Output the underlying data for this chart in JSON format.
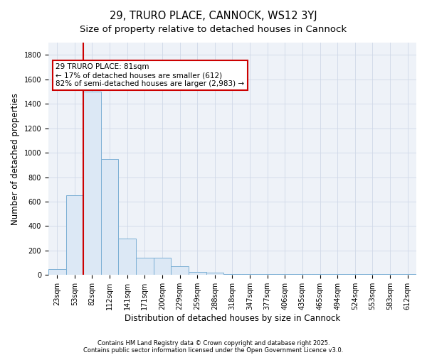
{
  "title1": "29, TRURO PLACE, CANNOCK, WS12 3YJ",
  "title2": "Size of property relative to detached houses in Cannock",
  "xlabel": "Distribution of detached houses by size in Cannock",
  "ylabel": "Number of detached properties",
  "categories": [
    "23sqm",
    "53sqm",
    "82sqm",
    "112sqm",
    "141sqm",
    "171sqm",
    "200sqm",
    "229sqm",
    "259sqm",
    "288sqm",
    "318sqm",
    "347sqm",
    "377sqm",
    "406sqm",
    "435sqm",
    "465sqm",
    "494sqm",
    "524sqm",
    "553sqm",
    "583sqm",
    "612sqm"
  ],
  "bar_heights": [
    50,
    650,
    1500,
    950,
    300,
    140,
    140,
    70,
    25,
    20,
    5,
    5,
    5,
    5,
    5,
    5,
    5,
    5,
    5,
    5,
    5
  ],
  "bar_color": "#dce8f5",
  "bar_edge_color": "#7bafd4",
  "grid_color": "#d0d8e8",
  "bg_color": "#eef2f8",
  "vline_color": "#cc0000",
  "annotation_line1": "29 TRURO PLACE: 81sqm",
  "annotation_line2": "← 17% of detached houses are smaller (612)",
  "annotation_line3": "82% of semi-detached houses are larger (2,983) →",
  "annotation_box_color": "#ffffff",
  "annotation_edge_color": "#cc0000",
  "ylim": [
    0,
    1900
  ],
  "yticks": [
    0,
    200,
    400,
    600,
    800,
    1000,
    1200,
    1400,
    1600,
    1800
  ],
  "footnote1": "Contains HM Land Registry data © Crown copyright and database right 2025.",
  "footnote2": "Contains public sector information licensed under the Open Government Licence v3.0.",
  "title_fontsize": 10.5,
  "subtitle_fontsize": 9.5,
  "tick_fontsize": 7,
  "ylabel_fontsize": 8.5,
  "xlabel_fontsize": 8.5,
  "annotation_fontsize": 7.5,
  "footnote_fontsize": 6.0
}
